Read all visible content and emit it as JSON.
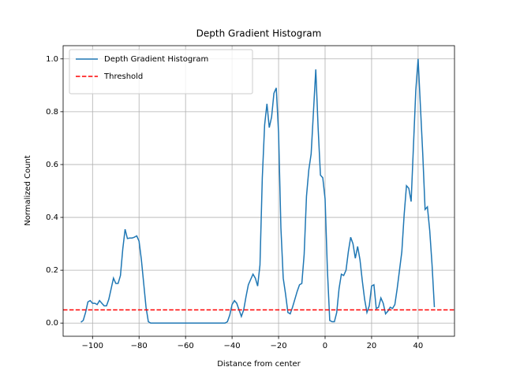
{
  "chart_data": {
    "type": "line",
    "title": "Depth Gradient Histogram",
    "xlabel": "Distance from center",
    "ylabel": "Normalized Count",
    "x": [
      -105,
      -104,
      -103,
      -102,
      -101,
      -100,
      -99,
      -98,
      -97,
      -96,
      -95,
      -94,
      -93,
      -92,
      -91,
      -90,
      -89,
      -88,
      -87,
      -86,
      -85,
      -84,
      -83,
      -82,
      -81,
      -80,
      -79,
      -78,
      -77,
      -76,
      -75,
      -74,
      -73,
      -72,
      -71,
      -70,
      -69,
      -68,
      -67,
      -66,
      -65,
      -64,
      -63,
      -62,
      -61,
      -60,
      -59,
      -58,
      -57,
      -56,
      -55,
      -54,
      -53,
      -52,
      -51,
      -50,
      -49,
      -48,
      -47,
      -46,
      -45,
      -44,
      -43,
      -42,
      -41,
      -40,
      -39,
      -38,
      -37,
      -36,
      -35,
      -34,
      -33,
      -32,
      -31,
      -30,
      -29,
      -28,
      -27,
      -26,
      -25,
      -24,
      -23,
      -22,
      -21,
      -20,
      -19,
      -18,
      -17,
      -16,
      -15,
      -14,
      -13,
      -12,
      -11,
      -10,
      -9,
      -8,
      -7,
      -6,
      -5,
      -4,
      -3,
      -2,
      -1,
      0,
      1,
      2,
      3,
      4,
      5,
      6,
      7,
      8,
      9,
      10,
      11,
      12,
      13,
      14,
      15,
      16,
      17,
      18,
      19,
      20,
      21,
      22,
      23,
      24,
      25,
      26,
      27,
      28,
      29,
      30,
      31,
      32,
      33,
      34,
      35,
      36,
      37,
      38,
      39,
      40,
      41,
      42,
      43,
      44,
      45,
      46,
      47
    ],
    "series": [
      {
        "name": "Depth Gradient Histogram",
        "color": "#1f77b4",
        "values": [
          0.003,
          0.01,
          0.04,
          0.08,
          0.085,
          0.075,
          0.075,
          0.07,
          0.085,
          0.075,
          0.065,
          0.065,
          0.09,
          0.13,
          0.17,
          0.15,
          0.15,
          0.18,
          0.28,
          0.355,
          0.32,
          0.322,
          0.322,
          0.325,
          0.33,
          0.31,
          0.24,
          0.15,
          0.06,
          0.005,
          0,
          0,
          0,
          0,
          0,
          0,
          0,
          0,
          0,
          0,
          0,
          0,
          0,
          0,
          0,
          0,
          0,
          0,
          0,
          0,
          0,
          0,
          0,
          0,
          0,
          0,
          0,
          0,
          0,
          0,
          0,
          0,
          0,
          0.005,
          0.03,
          0.07,
          0.085,
          0.075,
          0.05,
          0.025,
          0.05,
          0.1,
          0.145,
          0.165,
          0.185,
          0.17,
          0.14,
          0.22,
          0.55,
          0.75,
          0.83,
          0.74,
          0.78,
          0.87,
          0.89,
          0.72,
          0.36,
          0.17,
          0.11,
          0.04,
          0.035,
          0.06,
          0.09,
          0.12,
          0.145,
          0.15,
          0.26,
          0.48,
          0.58,
          0.64,
          0.8,
          0.96,
          0.74,
          0.56,
          0.55,
          0.47,
          0.2,
          0.01,
          0.005,
          0.005,
          0.04,
          0.13,
          0.185,
          0.18,
          0.2,
          0.27,
          0.325,
          0.3,
          0.245,
          0.29,
          0.24,
          0.16,
          0.09,
          0.04,
          0.065,
          0.14,
          0.145,
          0.055,
          0.06,
          0.095,
          0.075,
          0.035,
          0.045,
          0.06,
          0.055,
          0.07,
          0.13,
          0.2,
          0.27,
          0.41,
          0.52,
          0.51,
          0.46,
          0.67,
          0.88,
          1.0,
          0.82,
          0.64,
          0.43,
          0.44,
          0.35,
          0.22,
          0.06
        ]
      }
    ],
    "hlines": [
      {
        "name": "Threshold",
        "value": 0.05,
        "color": "#ff0000",
        "style": "dashed"
      }
    ],
    "xlim": [
      -112.65,
      55.65
    ],
    "xticks": [
      {
        "value": -100,
        "label": "−100"
      },
      {
        "value": -80,
        "label": "−80"
      },
      {
        "value": -60,
        "label": "−60"
      },
      {
        "value": -40,
        "label": "−40"
      },
      {
        "value": -20,
        "label": "−20"
      },
      0,
      20,
      40
    ],
    "ylim": [
      -0.05,
      1.05
    ],
    "yticks": [
      {
        "value": 0,
        "label": "0.0"
      },
      0.2,
      0.4,
      0.6,
      0.8,
      {
        "value": 1,
        "label": "1.0"
      }
    ],
    "grid": true,
    "legend": "upper left"
  }
}
